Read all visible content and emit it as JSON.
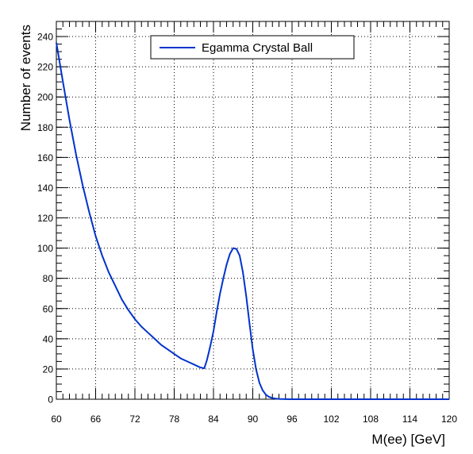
{
  "chart_data": {
    "type": "line",
    "title": "",
    "xlabel": "M(ee) [GeV]",
    "ylabel": "Number of events",
    "xlim": [
      60,
      120
    ],
    "ylim": [
      0,
      250
    ],
    "x_ticks": [
      "60",
      "66",
      "72",
      "78",
      "84",
      "90",
      "96",
      "102",
      "108",
      "114",
      "120"
    ],
    "y_ticks": [
      "0",
      "20",
      "40",
      "60",
      "80",
      "100",
      "120",
      "140",
      "160",
      "180",
      "200",
      "220",
      "240"
    ],
    "x_tick_values": [
      60,
      66,
      72,
      78,
      84,
      90,
      96,
      102,
      108,
      114,
      120
    ],
    "y_tick_values": [
      0,
      20,
      40,
      60,
      80,
      100,
      120,
      140,
      160,
      180,
      200,
      220,
      240
    ],
    "grid": true,
    "grid_style": "dotted",
    "legend_position": "top-center",
    "series": [
      {
        "name": "Egamma Crystal Ball",
        "color": "#0033cc",
        "x": [
          60,
          61,
          62,
          63,
          64,
          65,
          66,
          67,
          68,
          69,
          70,
          71,
          72,
          73,
          74,
          75,
          76,
          77,
          78,
          79,
          80,
          81,
          82,
          82.6,
          83,
          83.5,
          84,
          84.5,
          85,
          85.5,
          86,
          86.5,
          87,
          87.5,
          88,
          88.5,
          89,
          89.5,
          90,
          90.5,
          91,
          91.5,
          92,
          92.5,
          93,
          93.5,
          94,
          94.5,
          95,
          96,
          98,
          100,
          105,
          110,
          115,
          120
        ],
        "values": [
          236,
          210,
          185,
          162,
          142,
          124,
          108,
          95,
          84,
          75,
          66,
          59,
          53,
          48,
          44,
          40,
          36,
          33,
          30,
          27,
          25,
          23,
          21,
          20.5,
          26,
          35,
          45,
          58,
          70,
          80,
          89,
          96,
          100,
          99.5,
          95,
          84,
          68,
          50,
          33,
          20,
          11,
          6,
          3,
          1.5,
          0.8,
          0.4,
          0.2,
          0.1,
          0.05,
          0.02,
          0,
          0,
          0,
          0,
          0,
          0
        ]
      }
    ]
  }
}
